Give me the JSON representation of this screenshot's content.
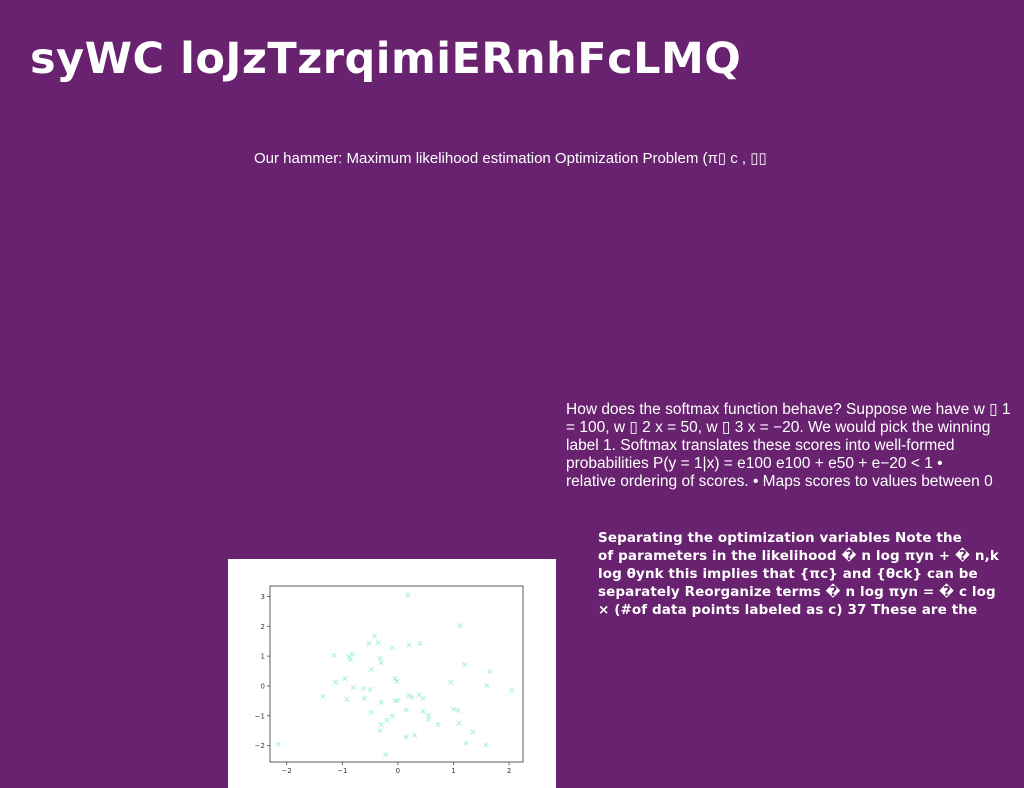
{
  "slide": {
    "title": "syWC loJzTzrqimiERnhFcLMQ",
    "subtitle": "Our hammer: Maximum likelihood estimation Optimization Problem (π▯ c , ▯▯",
    "paragraph_softmax": "How does the softmax function behave? Suppose we have w ▯ 1\n= 100, w ▯ 2 x = 50, w ▯ 3 x = −20. We would pick the winning\nlabel 1. Softmax translates these scores into well-formed\nprobabilities P(y = 1|x) = e100 e100 + e50 + e−20 < 1 •\nrelative ordering of scores. • Maps scores to values between 0",
    "paragraph_separating": "Separating the optimization variables Note the\nof parameters in the likelihood � n log πyn + � n,k\nlog θynk this implies that {πc} and {θck} can be\nseparately Reorganize terms � n log πyn = � c log\n× (#of data points labeled as c) 37 These are the"
  },
  "chart_data": {
    "type": "scatter",
    "marker": "x",
    "marker_color": "#a8f0dc",
    "xlim": [
      -2.3,
      2.25
    ],
    "ylim": [
      -2.55,
      3.35
    ],
    "x_ticks": [
      -2,
      -1,
      0,
      1,
      2
    ],
    "y_ticks": [
      -2,
      -1,
      0,
      1,
      2,
      3
    ],
    "x_tick_labels": [
      "−2",
      "−1",
      "0",
      "1",
      "2"
    ],
    "y_tick_labels": [
      "−2",
      "−1",
      "0",
      "1",
      "2",
      "3"
    ],
    "points": [
      [
        0.18,
        3.05
      ],
      [
        1.12,
        2.02
      ],
      [
        -0.42,
        1.68
      ],
      [
        -0.35,
        1.45
      ],
      [
        -0.52,
        1.42
      ],
      [
        0.2,
        1.38
      ],
      [
        0.4,
        1.42
      ],
      [
        -0.1,
        1.28
      ],
      [
        -1.15,
        1.02
      ],
      [
        -0.88,
        0.98
      ],
      [
        -0.82,
        1.06
      ],
      [
        -0.85,
        0.88
      ],
      [
        -0.32,
        0.92
      ],
      [
        -0.3,
        0.78
      ],
      [
        1.2,
        0.72
      ],
      [
        -0.48,
        0.55
      ],
      [
        1.65,
        0.48
      ],
      [
        -0.95,
        0.25
      ],
      [
        -0.05,
        0.25
      ],
      [
        -1.12,
        0.12
      ],
      [
        -0.02,
        0.15
      ],
      [
        0.95,
        0.12
      ],
      [
        1.6,
        0.02
      ],
      [
        -0.8,
        -0.05
      ],
      [
        -0.62,
        -0.08
      ],
      [
        -0.5,
        -0.12
      ],
      [
        2.05,
        -0.15
      ],
      [
        -1.35,
        -0.35
      ],
      [
        0.2,
        -0.32
      ],
      [
        0.25,
        -0.38
      ],
      [
        0.38,
        -0.3
      ],
      [
        0.45,
        -0.42
      ],
      [
        -0.92,
        -0.45
      ],
      [
        -0.3,
        -0.55
      ],
      [
        -0.05,
        -0.5
      ],
      [
        0.0,
        -0.48
      ],
      [
        -0.6,
        -0.42
      ],
      [
        1.0,
        -0.78
      ],
      [
        1.08,
        -0.82
      ],
      [
        0.45,
        -0.85
      ],
      [
        -0.48,
        -0.88
      ],
      [
        0.55,
        -0.98
      ],
      [
        -0.1,
        -1.02
      ],
      [
        0.15,
        -0.8
      ],
      [
        -0.2,
        -1.15
      ],
      [
        0.55,
        -1.12
      ],
      [
        0.72,
        -1.3
      ],
      [
        1.1,
        -1.25
      ],
      [
        -0.3,
        -1.3
      ],
      [
        1.35,
        -1.55
      ],
      [
        -0.32,
        -1.5
      ],
      [
        0.3,
        -1.65
      ],
      [
        0.15,
        -1.72
      ],
      [
        -2.15,
        -1.95
      ],
      [
        1.22,
        -1.92
      ],
      [
        1.58,
        -1.98
      ],
      [
        -0.22,
        -2.3
      ]
    ]
  }
}
